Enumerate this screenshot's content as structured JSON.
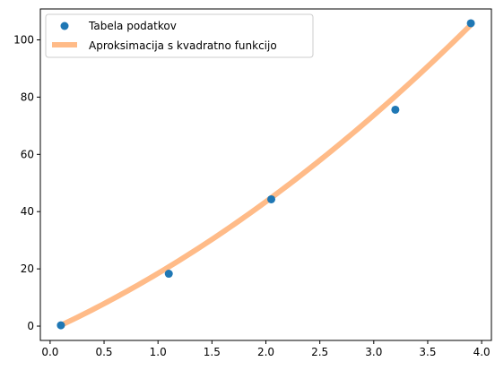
{
  "chart_data": {
    "type": "scatter",
    "title": "",
    "xlabel": "",
    "ylabel": "",
    "xlim": [
      -0.0905,
      4.0905
    ],
    "ylim": [
      -5.0,
      110.8
    ],
    "xticks": [
      0.0,
      0.5,
      1.0,
      1.5,
      2.0,
      2.5,
      3.0,
      3.5,
      4.0
    ],
    "xtick_labels": [
      "0.0",
      "0.5",
      "1.0",
      "1.5",
      "2.0",
      "2.5",
      "3.0",
      "3.5",
      "4.0"
    ],
    "yticks": [
      0,
      20,
      40,
      60,
      80,
      100
    ],
    "ytick_labels": [
      "0",
      "20",
      "40",
      "60",
      "80",
      "100"
    ],
    "grid": false,
    "legend_location": "top-left",
    "series": [
      {
        "name": "Tabela podatkov",
        "kind": "scatter",
        "color": "#1f77b4",
        "x": [
          0.1,
          1.1,
          2.05,
          3.2,
          3.9
        ],
        "y": [
          0.3,
          18.3,
          44.3,
          75.6,
          105.8
        ]
      },
      {
        "name": "Aproksimacija s kvadratno funkcijo",
        "kind": "line",
        "color": "#ffbb88",
        "model": "quadratic",
        "coefficients": {
          "a": 2.58,
          "b": 17.3,
          "c": -1.45
        },
        "x_range": [
          0.1,
          3.9
        ]
      }
    ]
  }
}
